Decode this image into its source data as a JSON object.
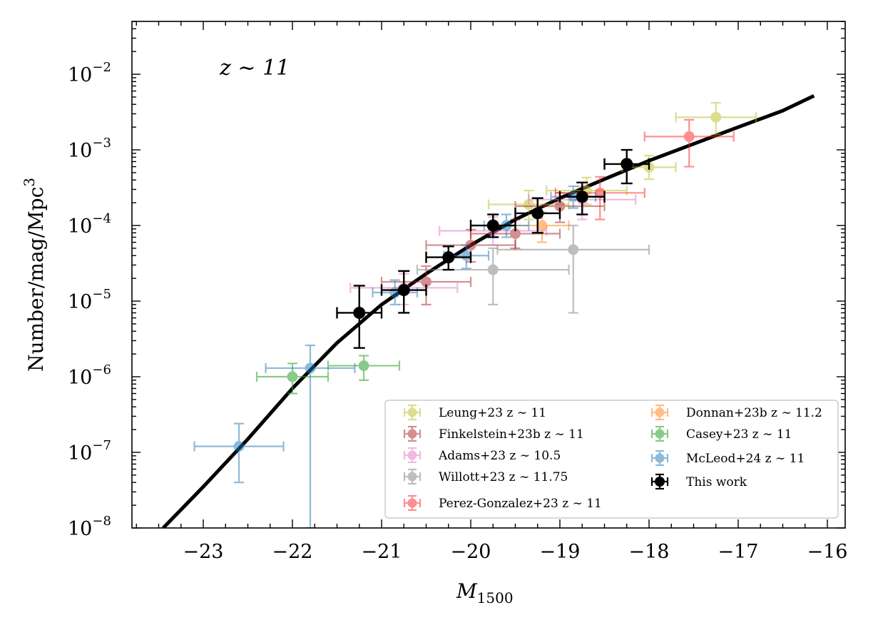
{
  "chart_data": {
    "type": "scatter",
    "annotation": "z ∼ 11",
    "xlabel": {
      "base": "M",
      "sub": "1500"
    },
    "ylabel": {
      "base": "Number/mag/Mpc",
      "sup": "3"
    },
    "xlim": [
      -23.8,
      -15.8
    ],
    "ylim": [
      1e-08,
      0.05
    ],
    "yscale": "log",
    "x_ticks": [
      -23,
      -22,
      -21,
      -20,
      -19,
      -18,
      -17,
      -16
    ],
    "x_tick_labels": [
      "−23",
      "−22",
      "−21",
      "−20",
      "−19",
      "−18",
      "−17",
      "−16"
    ],
    "y_ticks": [
      {
        "value": 1e-08,
        "base": "10",
        "exp": "−8"
      },
      {
        "value": 1e-07,
        "base": "10",
        "exp": "−7"
      },
      {
        "value": 1e-06,
        "base": "10",
        "exp": "−6"
      },
      {
        "value": 1e-05,
        "base": "10",
        "exp": "−5"
      },
      {
        "value": 0.0001,
        "base": "10",
        "exp": "−4"
      },
      {
        "value": 0.001,
        "base": "10",
        "exp": "−3"
      },
      {
        "value": 0.01,
        "base": "10",
        "exp": "−2"
      }
    ],
    "grid": false,
    "legend_position": "lower-right",
    "legend_columns": 2,
    "fit_curve": {
      "color": "#000000",
      "points": [
        [
          -23.45,
          1e-08
        ],
        [
          -23.0,
          3.5e-08
        ],
        [
          -22.5,
          1.5e-07
        ],
        [
          -22.0,
          7e-07
        ],
        [
          -21.5,
          2.8e-06
        ],
        [
          -21.0,
          9e-06
        ],
        [
          -20.5,
          2.3e-05
        ],
        [
          -20.0,
          5.5e-05
        ],
        [
          -19.5,
          0.00012
        ],
        [
          -19.0,
          0.00023
        ],
        [
          -18.5,
          0.00041
        ],
        [
          -18.0,
          0.00072
        ],
        [
          -17.5,
          0.0012
        ],
        [
          -17.0,
          0.002
        ],
        [
          -16.5,
          0.0033
        ],
        [
          -16.15,
          0.0052
        ]
      ]
    },
    "series": [
      {
        "name": "Leung+23 z ∼ 11",
        "color": "#bcbd22",
        "alpha": 0.5,
        "points": [
          {
            "x": -19.35,
            "y": 0.00019,
            "xerr": 0.45,
            "ylo": 0.00012,
            "yhi": 0.00029
          },
          {
            "x": -18.7,
            "y": 0.00029,
            "xerr": 0.45,
            "ylo": 0.00019,
            "yhi": 0.00043
          },
          {
            "x": -18.0,
            "y": 0.00059,
            "xerr": 0.3,
            "ylo": 0.00041,
            "yhi": 0.00084
          },
          {
            "x": -17.25,
            "y": 0.0027,
            "xerr": 0.45,
            "ylo": 0.0016,
            "yhi": 0.0042
          }
        ]
      },
      {
        "name": "Finkelstein+23b z ∼ 11",
        "color": "#aa2222",
        "alpha": 0.5,
        "points": [
          {
            "x": -20.5,
            "y": 1.8e-05,
            "xerr": 0.5,
            "ylo": 9e-06,
            "yhi": 2.9e-05
          },
          {
            "x": -20.0,
            "y": 5.5e-05,
            "xerr": 0.5,
            "ylo": 3.3e-05,
            "yhi": 8.8e-05
          },
          {
            "x": -19.5,
            "y": 7.8e-05,
            "xerr": 0.5,
            "ylo": 5e-05,
            "yhi": 0.00012
          },
          {
            "x": -19.0,
            "y": 0.00018,
            "xerr": 0.5,
            "ylo": 0.00011,
            "yhi": 0.00027
          }
        ]
      },
      {
        "name": "Adams+23 z ∼ 10.5",
        "color": "#e377c2",
        "alpha": 0.5,
        "points": [
          {
            "x": -20.75,
            "y": 1.5e-05,
            "xerr": 0.6,
            "ylo": 9e-06,
            "yhi": 2.3e-05
          },
          {
            "x": -19.75,
            "y": 8.5e-05,
            "xerr": 0.6,
            "ylo": 5.5e-05,
            "yhi": 0.00013
          },
          {
            "x": -18.75,
            "y": 0.00022,
            "xerr": 0.6,
            "ylo": 0.00012,
            "yhi": 0.00033
          }
        ]
      },
      {
        "name": "Willott+23 z ∼ 11.75",
        "color": "#7f7f7f",
        "alpha": 0.5,
        "points": [
          {
            "x": -19.75,
            "y": 2.6e-05,
            "xerr": 0.85,
            "ylo": 9e-06,
            "yhi": 5e-05
          },
          {
            "x": -18.85,
            "y": 4.8e-05,
            "xerr": 0.85,
            "ylo": 7e-06,
            "yhi": 0.0001
          }
        ]
      },
      {
        "name": "Perez-Gonzalez+23 z ∼ 11",
        "color": "#ff2222",
        "alpha": 0.5,
        "points": [
          {
            "x": -18.55,
            "y": 0.00027,
            "xerr": 0.5,
            "ylo": 0.00012,
            "yhi": 0.00044
          },
          {
            "x": -17.55,
            "y": 0.0015,
            "xerr": 0.5,
            "ylo": 0.0006,
            "yhi": 0.0025
          }
        ]
      },
      {
        "name": "Donnan+23b z ∼ 11.2",
        "color": "#ff7f0e",
        "alpha": 0.5,
        "points": [
          {
            "x": -19.2,
            "y": 0.0001,
            "xerr": 0.3,
            "ylo": 6e-05,
            "yhi": 0.00015
          }
        ]
      },
      {
        "name": "Casey+23 z ∼ 11",
        "color": "#2ca02c",
        "alpha": 0.55,
        "points": [
          {
            "x": -22.0,
            "y": 1e-06,
            "xerr": 0.4,
            "ylo": 6e-07,
            "yhi": 1.5e-06
          },
          {
            "x": -21.2,
            "y": 1.4e-06,
            "xerr": 0.4,
            "ylo": 9e-07,
            "yhi": 1.9e-06
          }
        ]
      },
      {
        "name": "McLeod+24 z ∼ 11",
        "color": "#1f77b4",
        "alpha": 0.5,
        "points": [
          {
            "x": -22.6,
            "y": 1.2e-07,
            "xerr": 0.5,
            "ylo": 4e-08,
            "yhi": 2.4e-07
          },
          {
            "x": -21.8,
            "y": 1.3e-06,
            "xerr": 0.5,
            "ylo": 1e-08,
            "yhi": 2.6e-06
          },
          {
            "x": -20.85,
            "y": 1.3e-05,
            "xerr": 0.25,
            "ylo": 9e-06,
            "yhi": 1.9e-05
          },
          {
            "x": -20.05,
            "y": 4e-05,
            "xerr": 0.25,
            "ylo": 2.7e-05,
            "yhi": 5.5e-05
          },
          {
            "x": -19.6,
            "y": 0.0001,
            "xerr": 0.25,
            "ylo": 7e-05,
            "yhi": 0.00014
          },
          {
            "x": -18.85,
            "y": 0.00024,
            "xerr": 0.25,
            "ylo": 0.00017,
            "yhi": 0.00033
          }
        ]
      },
      {
        "name": "This work",
        "color": "#000000",
        "alpha": 1.0,
        "points": [
          {
            "x": -21.25,
            "y": 7e-06,
            "xerr": 0.25,
            "ylo": 2.4e-06,
            "yhi": 1.6e-05
          },
          {
            "x": -20.75,
            "y": 1.4e-05,
            "xerr": 0.25,
            "ylo": 7e-06,
            "yhi": 2.5e-05
          },
          {
            "x": -20.25,
            "y": 3.8e-05,
            "xerr": 0.25,
            "ylo": 2.6e-05,
            "yhi": 5.3e-05
          },
          {
            "x": -19.75,
            "y": 0.0001,
            "xerr": 0.25,
            "ylo": 7e-05,
            "yhi": 0.00014
          },
          {
            "x": -19.25,
            "y": 0.000145,
            "xerr": 0.25,
            "ylo": 8e-05,
            "yhi": 0.00023
          },
          {
            "x": -18.75,
            "y": 0.00024,
            "xerr": 0.25,
            "ylo": 0.00014,
            "yhi": 0.00037
          },
          {
            "x": -18.25,
            "y": 0.00065,
            "xerr": 0.25,
            "ylo": 0.00036,
            "yhi": 0.001
          }
        ]
      }
    ],
    "legend": {
      "col1": [
        "Leung+23 z ∼ 11",
        "Finkelstein+23b z ∼ 11",
        "Adams+23 z ∼ 10.5",
        "Willott+23 z ∼ 11.75",
        "Perez-Gonzalez+23 z ∼ 11"
      ],
      "col2": [
        "Donnan+23b z ∼ 11.2",
        "Casey+23 z ∼ 11",
        "McLeod+24 z ∼ 11",
        "This work"
      ]
    }
  }
}
